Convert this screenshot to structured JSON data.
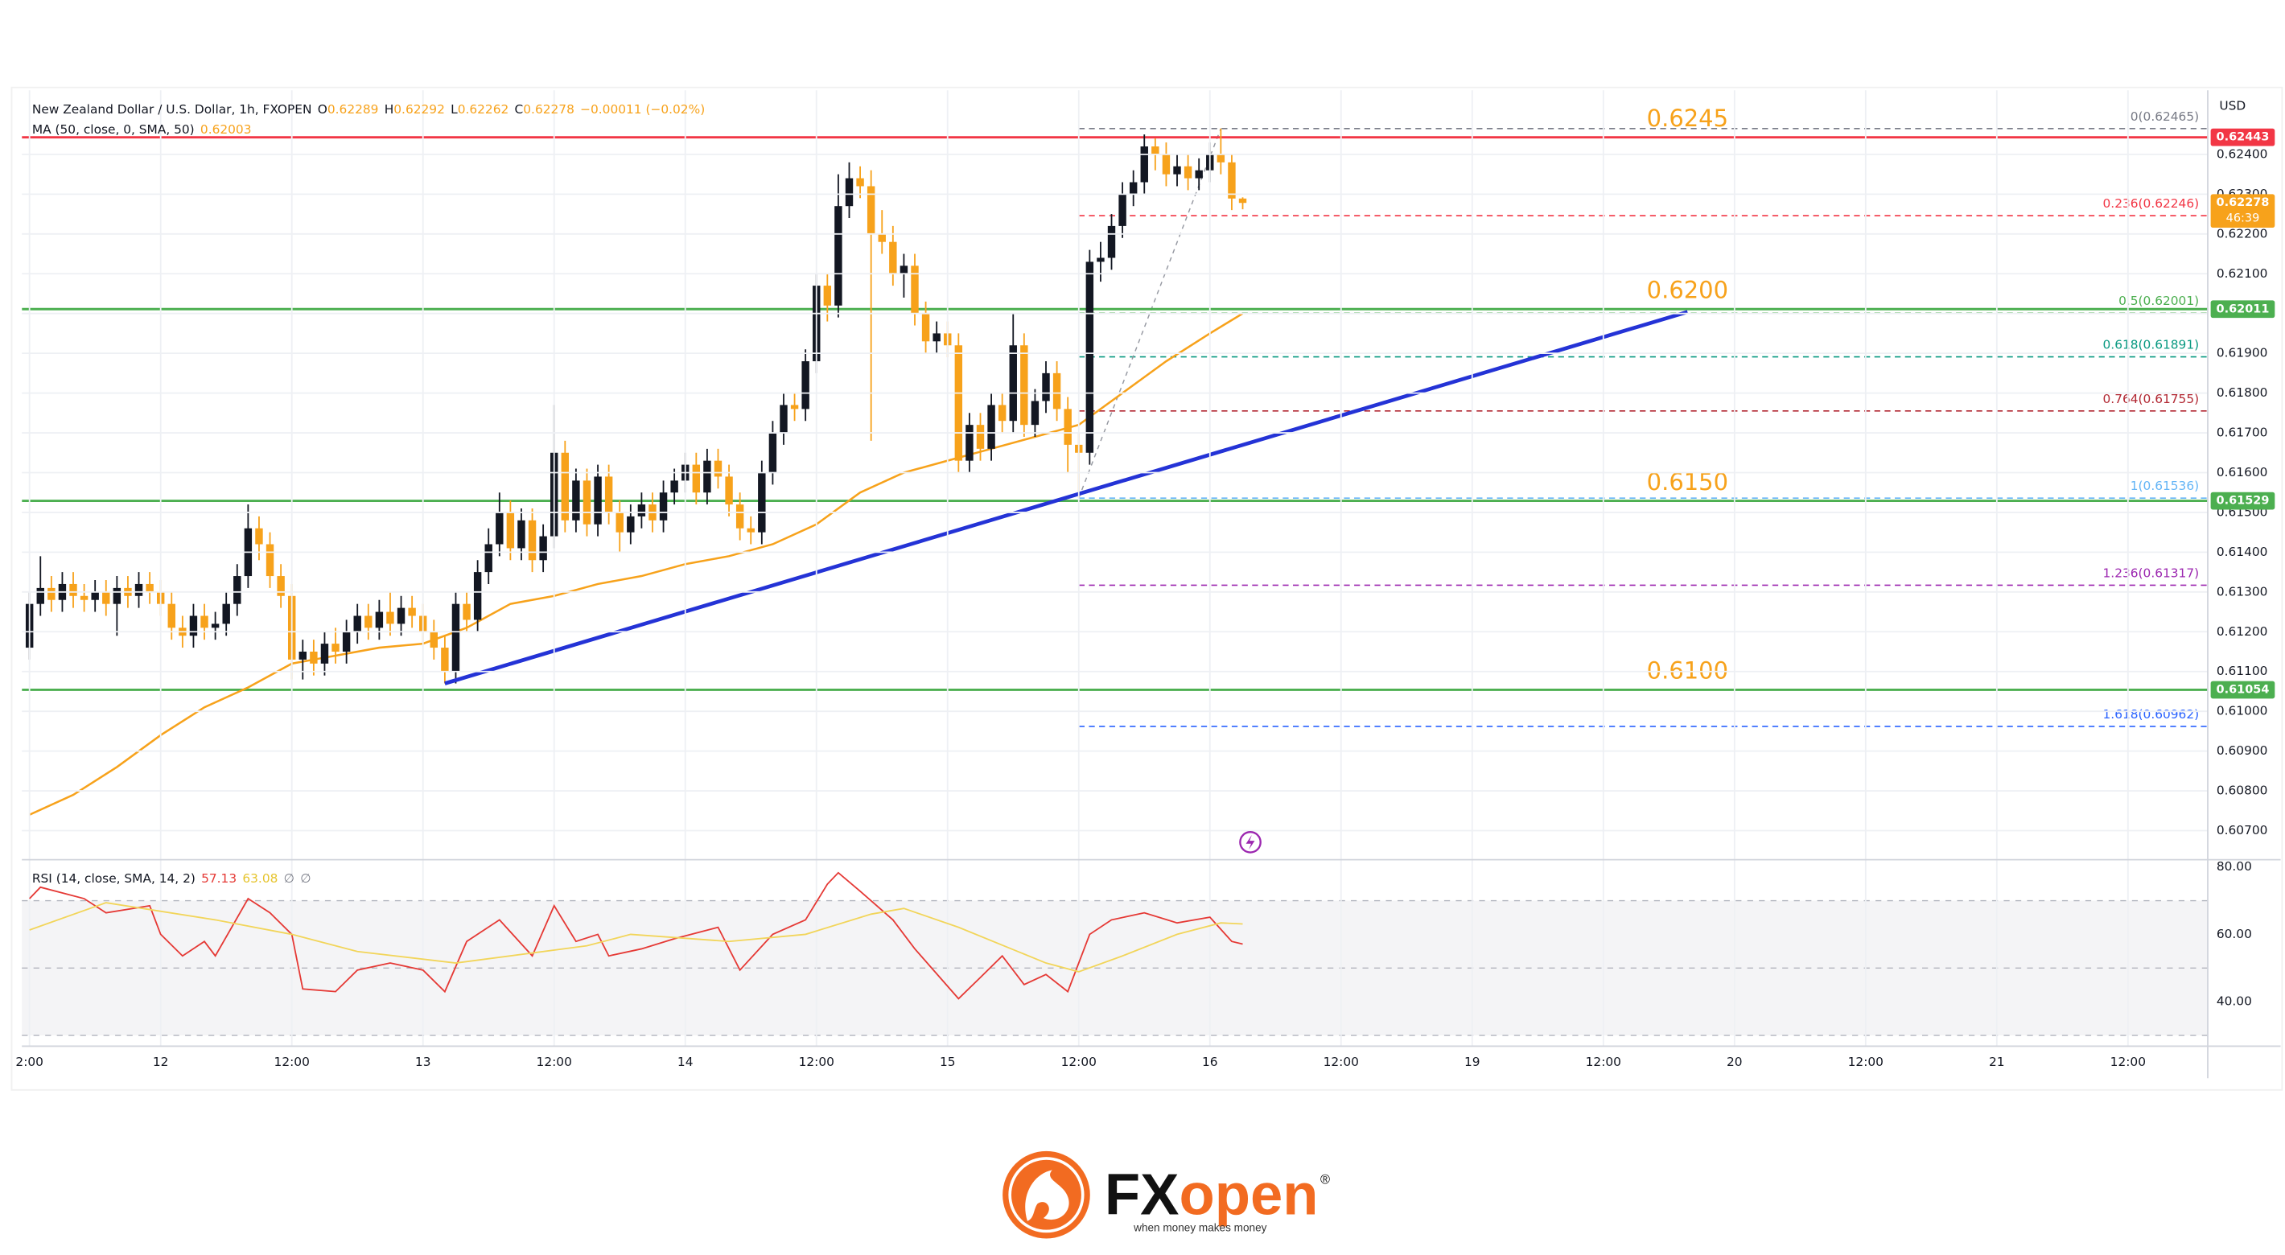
{
  "chart_data": [
    {
      "type": "candlestick",
      "title": "New Zealand Dollar / U.S. Dollar, 1h, FXOPEN",
      "ohlc_labels": [
        "O",
        "H",
        "L",
        "C"
      ],
      "change": "−0.00011 (−0.02%)",
      "currency": "USD",
      "countdown": "46:39",
      "up_color": "#131722",
      "down_color": "#f7a21b",
      "grid": true,
      "xlim": [
        -12.7,
        187.3
      ],
      "xticks": [
        {
          "value": -12,
          "label": "2:00"
        },
        {
          "value": 0,
          "label": "12"
        },
        {
          "value": 12,
          "label": "12:00"
        },
        {
          "value": 24,
          "label": "13"
        },
        {
          "value": 36,
          "label": "12:00"
        },
        {
          "value": 48,
          "label": "14"
        },
        {
          "value": 60,
          "label": "12:00"
        },
        {
          "value": 72,
          "label": "15"
        },
        {
          "value": 84,
          "label": "12:00"
        },
        {
          "value": 96,
          "label": "16"
        },
        {
          "value": 108,
          "label": "12:00"
        },
        {
          "value": 120,
          "label": "19"
        },
        {
          "value": 132,
          "label": "12:00"
        },
        {
          "value": 144,
          "label": "20"
        },
        {
          "value": 156,
          "label": "12:00"
        },
        {
          "value": 168,
          "label": "21"
        },
        {
          "value": 180,
          "label": "12:00"
        }
      ],
      "ylim": [
        0.60627,
        0.62561
      ],
      "yticks": [
        {
          "value": 0.607,
          "label": "0.60700"
        },
        {
          "value": 0.608,
          "label": "0.60800"
        },
        {
          "value": 0.609,
          "label": "0.60900"
        },
        {
          "value": 0.61,
          "label": "0.61000"
        },
        {
          "value": 0.611,
          "label": "0.61100"
        },
        {
          "value": 0.612,
          "label": "0.61200"
        },
        {
          "value": 0.613,
          "label": "0.61300"
        },
        {
          "value": 0.614,
          "label": "0.61400"
        },
        {
          "value": 0.615,
          "label": "0.61500"
        },
        {
          "value": 0.616,
          "label": "0.61600"
        },
        {
          "value": 0.617,
          "label": "0.61700"
        },
        {
          "value": 0.618,
          "label": "0.61800"
        },
        {
          "value": 0.619,
          "label": "0.61900"
        },
        {
          "value": 0.62,
          "label": "0.62000"
        },
        {
          "value": 0.621,
          "label": "0.62100"
        },
        {
          "value": 0.622,
          "label": "0.62200"
        },
        {
          "value": 0.623,
          "label": "0.62300"
        },
        {
          "value": 0.624,
          "label": "0.62400"
        }
      ],
      "x": [
        -12,
        -11,
        -10,
        -9,
        -8,
        -7,
        -6,
        -5,
        -4,
        -3,
        -2,
        -1,
        0,
        1,
        2,
        3,
        4,
        5,
        6,
        7,
        8,
        9,
        10,
        11,
        12,
        13,
        14,
        15,
        16,
        17,
        18,
        19,
        20,
        21,
        22,
        23,
        24,
        25,
        26,
        27,
        28,
        29,
        30,
        31,
        32,
        33,
        34,
        35,
        36,
        37,
        38,
        39,
        40,
        41,
        42,
        43,
        44,
        45,
        46,
        47,
        48,
        49,
        50,
        51,
        52,
        53,
        54,
        55,
        56,
        57,
        58,
        59,
        60,
        61,
        62,
        63,
        64,
        65,
        66,
        67,
        68,
        69,
        70,
        71,
        72,
        73,
        74,
        75,
        76,
        77,
        78,
        79,
        80,
        81,
        82,
        83,
        84,
        85,
        86,
        87,
        88,
        89,
        90,
        91,
        92,
        93,
        94,
        95,
        96,
        97,
        98,
        99
      ],
      "open": [
        0.6116,
        0.6127,
        0.6131,
        0.6128,
        0.6132,
        0.6129,
        0.6128,
        0.613,
        0.6127,
        0.6131,
        0.6129,
        0.6132,
        0.613,
        0.6127,
        0.6121,
        0.6119,
        0.6124,
        0.6121,
        0.6122,
        0.6127,
        0.6134,
        0.6146,
        0.6142,
        0.6134,
        0.6129,
        0.6113,
        0.6115,
        0.6112,
        0.6117,
        0.6115,
        0.612,
        0.6124,
        0.6121,
        0.6125,
        0.6122,
        0.6126,
        0.6124,
        0.612,
        0.6116,
        0.611,
        0.6127,
        0.6123,
        0.6135,
        0.6142,
        0.615,
        0.6141,
        0.6148,
        0.6138,
        0.6144,
        0.6165,
        0.6148,
        0.6158,
        0.6147,
        0.6159,
        0.615,
        0.6145,
        0.6149,
        0.6152,
        0.6148,
        0.6155,
        0.6158,
        0.6162,
        0.6155,
        0.6163,
        0.6159,
        0.6152,
        0.6146,
        0.6145,
        0.616,
        0.617,
        0.6177,
        0.6176,
        0.6188,
        0.6207,
        0.6202,
        0.6227,
        0.6234,
        0.6232,
        0.622,
        0.6218,
        0.621,
        0.6212,
        0.62,
        0.6193,
        0.6195,
        0.6192,
        0.6163,
        0.6172,
        0.6166,
        0.6177,
        0.6173,
        0.6192,
        0.6172,
        0.6178,
        0.6185,
        0.6176,
        0.6167,
        0.6165,
        0.6213,
        0.6214,
        0.6222,
        0.623,
        0.6233,
        0.6242,
        0.624,
        0.6235,
        0.6237,
        0.6234,
        0.6236,
        0.624,
        0.6238,
        0.62289
      ],
      "high": [
        0.613,
        0.6139,
        0.6134,
        0.6135,
        0.6135,
        0.6132,
        0.6133,
        0.6133,
        0.6134,
        0.6134,
        0.6135,
        0.6135,
        0.6133,
        0.613,
        0.6124,
        0.6127,
        0.6127,
        0.6125,
        0.613,
        0.6137,
        0.6152,
        0.6149,
        0.6145,
        0.6137,
        0.6132,
        0.6118,
        0.6118,
        0.612,
        0.6121,
        0.6123,
        0.6127,
        0.6127,
        0.6128,
        0.613,
        0.6129,
        0.6129,
        0.6127,
        0.6123,
        0.6119,
        0.613,
        0.613,
        0.6138,
        0.6146,
        0.6155,
        0.6153,
        0.6151,
        0.6151,
        0.6147,
        0.6177,
        0.6168,
        0.6161,
        0.6161,
        0.6162,
        0.6162,
        0.6153,
        0.6152,
        0.6155,
        0.6155,
        0.6158,
        0.6161,
        0.6165,
        0.6165,
        0.6166,
        0.6166,
        0.6162,
        0.6155,
        0.6149,
        0.6163,
        0.6173,
        0.618,
        0.618,
        0.6191,
        0.621,
        0.621,
        0.6235,
        0.6238,
        0.6237,
        0.6236,
        0.6226,
        0.6222,
        0.6215,
        0.6215,
        0.6203,
        0.6198,
        0.6198,
        0.6195,
        0.6175,
        0.6175,
        0.618,
        0.618,
        0.62,
        0.6195,
        0.6181,
        0.6188,
        0.6188,
        0.6179,
        0.617,
        0.6216,
        0.6218,
        0.6225,
        0.6233,
        0.6236,
        0.6245,
        0.6244,
        0.6243,
        0.624,
        0.624,
        0.6239,
        0.6243,
        0.62465,
        0.624,
        0.62292
      ],
      "low": [
        0.6113,
        0.6124,
        0.6125,
        0.6125,
        0.6126,
        0.6125,
        0.6125,
        0.6124,
        0.6119,
        0.6126,
        0.6126,
        0.6127,
        0.6124,
        0.6118,
        0.6116,
        0.6116,
        0.6118,
        0.6118,
        0.6119,
        0.6124,
        0.6131,
        0.6138,
        0.6131,
        0.6126,
        0.6108,
        0.6108,
        0.6109,
        0.6109,
        0.6112,
        0.6112,
        0.6117,
        0.6118,
        0.6118,
        0.6119,
        0.6119,
        0.6121,
        0.6117,
        0.6113,
        0.6107,
        0.6107,
        0.612,
        0.612,
        0.6132,
        0.6139,
        0.6138,
        0.6138,
        0.6135,
        0.6135,
        0.6141,
        0.6145,
        0.6145,
        0.6144,
        0.6144,
        0.6147,
        0.614,
        0.6142,
        0.6146,
        0.6145,
        0.6145,
        0.6152,
        0.6155,
        0.6152,
        0.6152,
        0.6156,
        0.6149,
        0.6143,
        0.6142,
        0.6142,
        0.6157,
        0.6167,
        0.6173,
        0.6173,
        0.6185,
        0.6198,
        0.6199,
        0.6224,
        0.6229,
        0.6168,
        0.6215,
        0.6207,
        0.6204,
        0.6197,
        0.619,
        0.619,
        0.6189,
        0.616,
        0.616,
        0.6163,
        0.6163,
        0.617,
        0.617,
        0.6169,
        0.6169,
        0.6175,
        0.6173,
        0.616,
        0.61536,
        0.6162,
        0.6208,
        0.6211,
        0.6219,
        0.6227,
        0.623,
        0.6236,
        0.6232,
        0.6232,
        0.6231,
        0.6231,
        0.6233,
        0.6235,
        0.6226,
        0.62262
      ],
      "close": [
        0.6127,
        0.6131,
        0.6128,
        0.6132,
        0.6129,
        0.6128,
        0.613,
        0.6127,
        0.6131,
        0.6129,
        0.6132,
        0.613,
        0.6127,
        0.6121,
        0.6119,
        0.6124,
        0.6121,
        0.6122,
        0.6127,
        0.6134,
        0.6146,
        0.6142,
        0.6134,
        0.6129,
        0.6113,
        0.6115,
        0.6112,
        0.6117,
        0.6115,
        0.612,
        0.6124,
        0.6121,
        0.6125,
        0.6122,
        0.6126,
        0.6124,
        0.612,
        0.6116,
        0.611,
        0.6127,
        0.6123,
        0.6135,
        0.6142,
        0.615,
        0.6141,
        0.6148,
        0.6138,
        0.6144,
        0.6165,
        0.6148,
        0.6158,
        0.6147,
        0.6159,
        0.615,
        0.6145,
        0.6149,
        0.6152,
        0.6148,
        0.6155,
        0.6158,
        0.6162,
        0.6155,
        0.6163,
        0.6159,
        0.6152,
        0.6146,
        0.6145,
        0.616,
        0.617,
        0.6177,
        0.6176,
        0.6188,
        0.6207,
        0.6202,
        0.6227,
        0.6234,
        0.6232,
        0.622,
        0.6218,
        0.621,
        0.6212,
        0.62,
        0.6193,
        0.6195,
        0.6192,
        0.6163,
        0.6172,
        0.6166,
        0.6177,
        0.6173,
        0.6192,
        0.6172,
        0.6178,
        0.6185,
        0.6176,
        0.6167,
        0.6165,
        0.6213,
        0.6214,
        0.6222,
        0.623,
        0.6233,
        0.6242,
        0.624,
        0.6235,
        0.6237,
        0.6234,
        0.6236,
        0.624,
        0.6238,
        0.62289,
        0.62278
      ],
      "ma": {
        "title": "MA (50, close, 0, SMA, 50)",
        "value": 0.62003,
        "color": "#f7a21b",
        "x": [
          -12,
          -8,
          -4,
          0,
          4,
          8,
          12,
          16,
          20,
          24,
          28,
          32,
          36,
          40,
          44,
          48,
          52,
          56,
          60,
          64,
          68,
          72,
          76,
          80,
          84,
          88,
          92,
          96,
          99
        ],
        "values": [
          0.6074,
          0.6079,
          0.6086,
          0.6094,
          0.6101,
          0.6106,
          0.6112,
          0.6114,
          0.6116,
          0.6117,
          0.6121,
          0.6127,
          0.6129,
          0.6132,
          0.6134,
          0.6137,
          0.6139,
          0.6142,
          0.6147,
          0.6155,
          0.616,
          0.6163,
          0.6166,
          0.6169,
          0.6172,
          0.618,
          0.6188,
          0.6195,
          0.62
        ]
      },
      "levels": [
        {
          "label": "0.6245",
          "price": 0.62443,
          "color": "#f23645"
        },
        {
          "label": "0.6200",
          "price": 0.62011,
          "color": "#4caf50"
        },
        {
          "label": "0.6150",
          "price": 0.61529,
          "color": "#4caf50"
        },
        {
          "label": "0.6100",
          "price": 0.61054,
          "color": "#4caf50"
        }
      ],
      "level_label_color": "#f7a21b",
      "fib_anchor_x": [
        84,
        97
      ],
      "fib": [
        {
          "label": "0(0.62465)",
          "value": 0.62465,
          "color": "#787b86"
        },
        {
          "label": "0.236(0.62246)",
          "value": 0.62246,
          "color": "#f23645"
        },
        {
          "label": "0.5(0.62001)",
          "value": 0.62001,
          "color": "#4caf50"
        },
        {
          "label": "0.618(0.61891)",
          "value": 0.61891,
          "color": "#089981"
        },
        {
          "label": "0.764(0.61755)",
          "value": 0.61755,
          "color": "#b22833"
        },
        {
          "label": "1(0.61536)",
          "value": 0.61536,
          "color": "#64b5f6"
        },
        {
          "label": "1.236(0.61317)",
          "value": 0.61317,
          "color": "#9c27b0"
        },
        {
          "label": "1.618(0.60962)",
          "value": 0.60962,
          "color": "#2962ff"
        }
      ],
      "trendline": {
        "x": [
          26,
          139.7
        ],
        "values": [
          0.6107,
          0.62004
        ],
        "color": "#2433d6"
      }
    },
    {
      "type": "line",
      "title": "RSI (14, close, SMA, 14, 2)",
      "extras": [
        "∅",
        "∅"
      ],
      "xlim": [
        -12.7,
        187.3
      ],
      "ylim": [
        26.8,
        81.3
      ],
      "yticks": [
        {
          "value": 40,
          "label": "40.00"
        },
        {
          "value": 60,
          "label": "60.00"
        },
        {
          "value": 80,
          "label": "80.00"
        }
      ],
      "levels": [
        70,
        50,
        30
      ],
      "series": [
        {
          "color": "#e53935",
          "x": [
            -12,
            -11,
            -7,
            -5,
            -1,
            0,
            2,
            4,
            5,
            8,
            10,
            12,
            13,
            16,
            18,
            21,
            24,
            26,
            28,
            31,
            34,
            36,
            38,
            40,
            41,
            44,
            47,
            51,
            53,
            56,
            59,
            61,
            62,
            64,
            67,
            69,
            73,
            75,
            77,
            79,
            81,
            83,
            85,
            87,
            90,
            93,
            96,
            98,
            99
          ],
          "values": [
            70.6,
            74.0,
            70.6,
            66.4,
            68.5,
            60,
            53.6,
            57.9,
            53.6,
            70.6,
            66.4,
            60,
            43.8,
            43.0,
            49.4,
            51.5,
            49.4,
            43.0,
            57.9,
            64.3,
            53.6,
            68.5,
            57.9,
            60,
            53.6,
            55.7,
            58.7,
            62.1,
            49.4,
            60,
            64.3,
            74.9,
            78.3,
            72.8,
            64.3,
            55.7,
            40.9,
            47.2,
            53.6,
            45.1,
            48.1,
            43.0,
            60,
            64.3,
            66.4,
            63.4,
            65.1,
            57.9,
            57.13
          ]
        },
        {
          "color": "#f2d55a",
          "x": [
            -12,
            -5,
            5,
            12,
            18,
            27,
            39,
            43,
            52,
            59,
            65,
            68,
            73,
            81,
            84,
            88,
            93,
            97,
            99
          ],
          "values": [
            61.3,
            69.4,
            64.3,
            60,
            54.9,
            51.5,
            56.6,
            60,
            57.9,
            60,
            66,
            67.7,
            62.1,
            51.5,
            48.9,
            53.6,
            60,
            63.4,
            63.08
          ]
        }
      ]
    }
  ],
  "footer": {
    "brand_fx": "FX",
    "brand_open": "open",
    "registered": "®",
    "tagline": "when money makes money"
  }
}
